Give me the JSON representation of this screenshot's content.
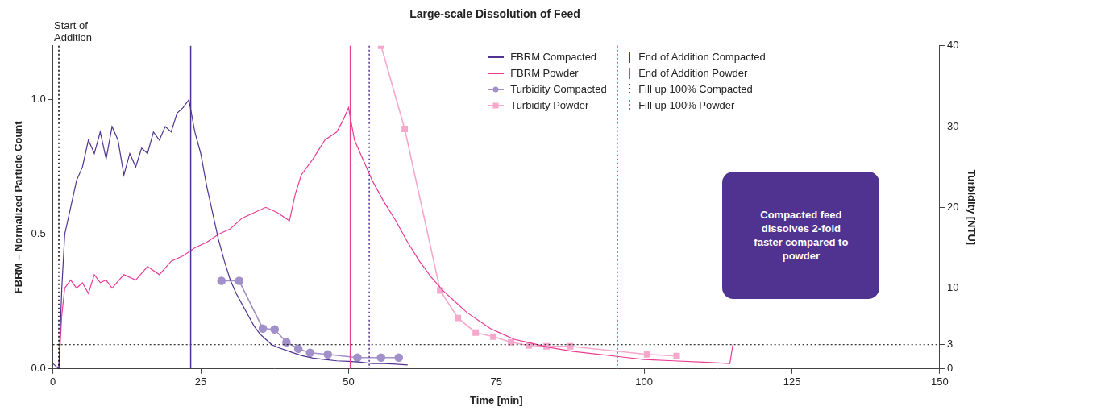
{
  "chart_data": {
    "type": "line",
    "title": "Large-scale Dissolution of Feed",
    "x_label": "Time [min]",
    "y_label": "FBRM – Normalized Particle Count",
    "y2_label": "Turbidity [NTU]",
    "xlim": [
      0,
      150
    ],
    "xticks": [
      0,
      25,
      50,
      75,
      100,
      125,
      150
    ],
    "ylim": [
      0,
      1.2
    ],
    "yticks": [
      {
        "value": 0,
        "label": "0.0"
      },
      {
        "value": 0.5,
        "label": "0.5"
      },
      {
        "value": 1,
        "label": "1.0"
      }
    ],
    "y2lim": [
      0,
      40
    ],
    "y2ticks": [
      0,
      3,
      10,
      20,
      30,
      40
    ],
    "grid": false,
    "legend": "top-right",
    "series": [
      {
        "name": "FBRM Compacted",
        "color": "#503291",
        "marker": "none",
        "line_style": "solid",
        "x": [
          0,
          1,
          1.5,
          2,
          3,
          4,
          5,
          6,
          7,
          8,
          9,
          10,
          11,
          12,
          13,
          14,
          15,
          16,
          17,
          18,
          19,
          20,
          21,
          22,
          23,
          24,
          25,
          26,
          27,
          28,
          29,
          30,
          31,
          32,
          33,
          34,
          35,
          36,
          37,
          38,
          40,
          42,
          44,
          46,
          48,
          50,
          52,
          54,
          56,
          58,
          60
        ],
        "values": [
          0.02,
          0.0,
          0.3,
          0.5,
          0.6,
          0.7,
          0.75,
          0.85,
          0.8,
          0.88,
          0.78,
          0.9,
          0.85,
          0.72,
          0.8,
          0.75,
          0.82,
          0.8,
          0.88,
          0.85,
          0.9,
          0.88,
          0.95,
          0.97,
          1.0,
          0.88,
          0.8,
          0.68,
          0.58,
          0.48,
          0.4,
          0.33,
          0.28,
          0.24,
          0.2,
          0.16,
          0.13,
          0.11,
          0.09,
          0.08,
          0.065,
          0.05,
          0.04,
          0.035,
          0.03,
          0.028,
          0.025,
          0.02,
          0.02,
          0.018,
          0.015
        ]
      },
      {
        "name": "FBRM Powder",
        "color": "#eb3c96",
        "marker": "none",
        "line_style": "solid",
        "x": [
          1,
          1.5,
          2,
          3,
          4,
          5,
          6,
          7,
          8,
          9,
          10,
          12,
          14,
          16,
          18,
          20,
          22,
          24,
          26,
          28,
          30,
          32,
          34,
          36,
          38,
          40,
          41,
          42,
          44,
          46,
          48,
          49,
          50,
          51,
          52,
          54,
          56,
          58,
          60,
          62,
          64,
          66,
          68,
          70,
          72,
          74,
          76,
          78,
          80,
          84,
          88,
          92,
          96,
          100,
          105,
          110,
          114.5,
          115
        ],
        "values": [
          0,
          0.2,
          0.3,
          0.33,
          0.3,
          0.32,
          0.28,
          0.35,
          0.32,
          0.33,
          0.3,
          0.35,
          0.33,
          0.38,
          0.35,
          0.4,
          0.42,
          0.45,
          0.47,
          0.5,
          0.52,
          0.56,
          0.58,
          0.6,
          0.58,
          0.55,
          0.65,
          0.72,
          0.78,
          0.85,
          0.88,
          0.92,
          0.97,
          0.85,
          0.8,
          0.7,
          0.62,
          0.55,
          0.47,
          0.4,
          0.34,
          0.29,
          0.25,
          0.21,
          0.18,
          0.15,
          0.13,
          0.11,
          0.1,
          0.08,
          0.065,
          0.055,
          0.045,
          0.035,
          0.03,
          0.025,
          0.02,
          0.09
        ]
      },
      {
        "name": "Turbidity Compacted",
        "color": "#a290c9",
        "marker": "circle",
        "line_style": "solid",
        "axis": "y2",
        "x": [
          28.5,
          31.5,
          35.5,
          37.5,
          39.5,
          41.5,
          43.5,
          46.5,
          51.5,
          55.5,
          58.5
        ],
        "values": [
          10.9,
          10.9,
          5,
          4.9,
          3.3,
          2.5,
          2,
          1.8,
          1.4,
          1.4,
          1.4
        ]
      },
      {
        "name": "Turbidity Powder",
        "color": "#f6a8cc",
        "marker": "square",
        "line_style": "solid",
        "axis": "y2",
        "x": [
          55.5,
          59.5,
          65.5,
          68.5,
          71.5,
          74.5,
          77.5,
          80.5,
          83.5,
          87.5,
          100.5,
          105.5
        ],
        "values": [
          40,
          29.7,
          9.7,
          6.3,
          4.5,
          4,
          3.3,
          2.9,
          2.8,
          2.8,
          1.8,
          1.6
        ]
      }
    ],
    "vertical_lines": [
      {
        "name": "End of Addition Compacted",
        "x": 23.3,
        "color": "#503291",
        "line_style": "solid"
      },
      {
        "name": "End of Addition Powder",
        "x": 50.3,
        "color": "#eb3c96",
        "line_style": "solid"
      },
      {
        "name": "Fill up 100% Compacted",
        "x": 53.5,
        "color": "#503291",
        "line_style": "dotted"
      },
      {
        "name": "Fill up 100% Powder",
        "x": 95.5,
        "color": "#eb3c96",
        "line_style": "dotted"
      }
    ],
    "start_line": {
      "text": "Start of Addition",
      "x": 1,
      "color": "#000000",
      "line_style": "dotted"
    },
    "reference_lines": [
      {
        "axis": "y2",
        "value": 3,
        "color": "#000000",
        "line_style": "dotted"
      }
    ],
    "callout": {
      "text": "Compacted feed dissolves 2-fold faster compared to powder",
      "color": "#503291"
    }
  }
}
